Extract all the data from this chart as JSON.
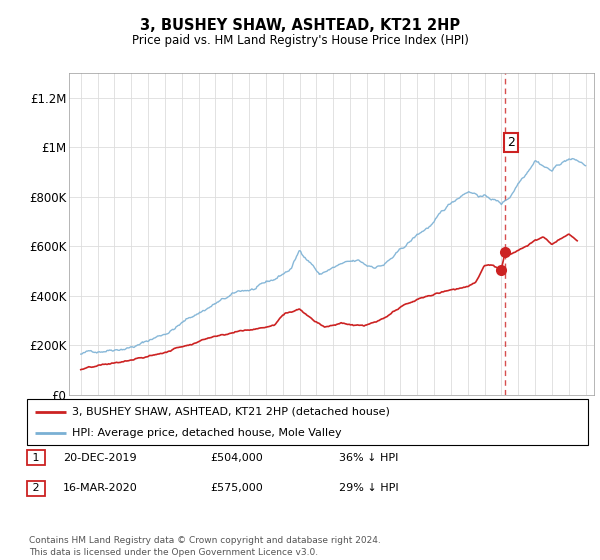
{
  "title": "3, BUSHEY SHAW, ASHTEAD, KT21 2HP",
  "subtitle": "Price paid vs. HM Land Registry's House Price Index (HPI)",
  "hpi_color": "#7ab0d4",
  "price_color": "#cc2222",
  "sale1_date": "20-DEC-2019",
  "sale1_price": 504000,
  "sale1_label": "1",
  "sale1_year": 2019.97,
  "sale2_date": "16-MAR-2020",
  "sale2_price": 575000,
  "sale2_label": "2",
  "sale2_year": 2020.21,
  "legend_line1": "3, BUSHEY SHAW, ASHTEAD, KT21 2HP (detached house)",
  "legend_line2": "HPI: Average price, detached house, Mole Valley",
  "footer": "Contains HM Land Registry data © Crown copyright and database right 2024.\nThis data is licensed under the Open Government Licence v3.0.",
  "ylim": [
    0,
    1300000
  ],
  "yticks": [
    0,
    200000,
    400000,
    600000,
    800000,
    1000000,
    1200000
  ],
  "ytick_labels": [
    "£0",
    "£200K",
    "£400K",
    "£600K",
    "£800K",
    "£1M",
    "£1.2M"
  ],
  "row1_pct": "36% ↓ HPI",
  "row2_pct": "29% ↓ HPI",
  "background_color": "#ffffff"
}
